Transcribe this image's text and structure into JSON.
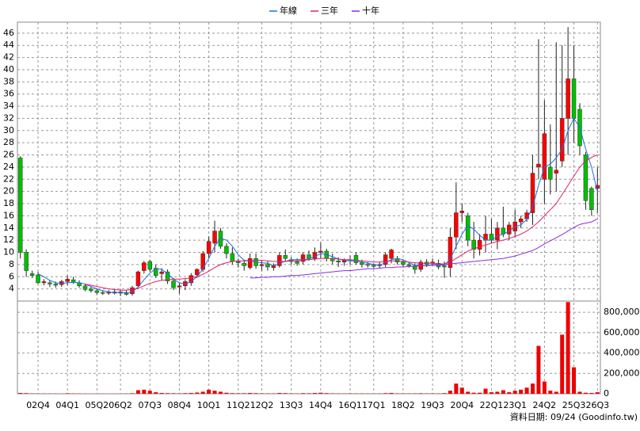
{
  "chart_data": {
    "type": "candlestick",
    "source": "資料日期: 09/24 (Goodinfo.tw)",
    "grid": true,
    "up_color": "#ff0000",
    "down_color": "#00c000",
    "categories": [
      null,
      null,
      null,
      "02Q4",
      null,
      null,
      null,
      null,
      "04Q1",
      null,
      null,
      null,
      null,
      "05Q2",
      null,
      null,
      null,
      "06Q2",
      null,
      null,
      null,
      null,
      "07Q3",
      null,
      null,
      null,
      null,
      "08Q4",
      null,
      null,
      null,
      null,
      "10Q1",
      null,
      null,
      null,
      null,
      "11Q2",
      null,
      null,
      null,
      "12Q2",
      null,
      null,
      null,
      null,
      "13Q3",
      null,
      null,
      null,
      null,
      "14Q4",
      null,
      null,
      null,
      null,
      "16Q1",
      null,
      null,
      null,
      "17Q1",
      null,
      null,
      null,
      null,
      "18Q2",
      null,
      null,
      null,
      null,
      "19Q3",
      null,
      null,
      null,
      null,
      "20Q4",
      null,
      null,
      null,
      null,
      "22Q1",
      null,
      null,
      null,
      "23Q1",
      null,
      null,
      null,
      null,
      "24Q2",
      null,
      null,
      null,
      null,
      "25Q3",
      null,
      null,
      null,
      "26Q3"
    ],
    "open": [
      25.5,
      10,
      6.5,
      6.3,
      5,
      5,
      4.8,
      4.7,
      5.2,
      5.5,
      5,
      4.5,
      4,
      3.7,
      3.4,
      3.3,
      3.5,
      3.3,
      3.4,
      3.2,
      4.5,
      7,
      8.5,
      7.4,
      6.5,
      6.8,
      5.3,
      4.3,
      4.5,
      5,
      6.3,
      7.2,
      9.8,
      11.5,
      13.5,
      11,
      9.8,
      8.5,
      8.2,
      7.5,
      9,
      7.8,
      8,
      7.5,
      7.8,
      9.5,
      8.8,
      8.5,
      8.5,
      9.6,
      9,
      10,
      10.2,
      9,
      8.6,
      8.4,
      8.8,
      9.5,
      8.3,
      8,
      7.9,
      7.8,
      8,
      9,
      9,
      8.4,
      8,
      7.8,
      7.2,
      8.4,
      8.2,
      8.2,
      7.8,
      7.5,
      12.5,
      16.5,
      16,
      12,
      10.5,
      12,
      13,
      12,
      14,
      13,
      13.5,
      15,
      15.5,
      16.5,
      24,
      22,
      24,
      23,
      25,
      32,
      38.5,
      33.5,
      26,
      20.5,
      20.5
    ],
    "high": [
      25.8,
      10.5,
      7,
      6.8,
      5.6,
      5.4,
      5.2,
      5.5,
      6.2,
      6,
      5.4,
      4.8,
      4.4,
      4.1,
      3.8,
      3.8,
      4,
      3.9,
      3.8,
      4.5,
      7,
      8.6,
      8.8,
      8,
      7.4,
      7.2,
      5.8,
      5,
      5.6,
      6.6,
      7.4,
      10.2,
      12.6,
      15.2,
      14,
      11.5,
      10.8,
      9,
      8.8,
      9.8,
      9.8,
      8.6,
      8.5,
      8.2,
      10,
      10.5,
      9.2,
      9,
      10,
      10.3,
      10.8,
      11.6,
      10.6,
      9.8,
      9.2,
      9,
      9.5,
      10,
      8.8,
      8.4,
      8.2,
      8.4,
      10,
      10.6,
      9.4,
      8.8,
      8.3,
      8.2,
      8.8,
      8.9,
      9,
      8.8,
      8.5,
      14,
      21.5,
      18,
      16.5,
      15,
      13,
      16,
      15.5,
      15,
      17.5,
      15,
      17,
      16,
      17,
      26,
      45,
      35,
      31,
      44.5,
      44,
      47,
      44,
      34.5,
      26.5,
      20.8,
      24
    ],
    "low": [
      9,
      6,
      5.8,
      4.8,
      4.6,
      4.3,
      4.2,
      4.3,
      4.6,
      4.8,
      4.2,
      3.6,
      3.4,
      3.1,
      3,
      3,
      3.1,
      2.8,
      2.9,
      2.9,
      4.3,
      6.5,
      6.8,
      5.8,
      5.4,
      4.8,
      3.8,
      3.2,
      3.8,
      4.5,
      5.8,
      6.8,
      9,
      10,
      10.6,
      9,
      8,
      7.5,
      7,
      7.2,
      7.3,
      7,
      7,
      7,
      7.5,
      8.5,
      8,
      7.8,
      8,
      8.6,
      8.6,
      9,
      8.5,
      8,
      7.6,
      7.8,
      8,
      8,
      7.5,
      7.5,
      7.4,
      7.3,
      7.6,
      8.2,
      8,
      7.6,
      7.5,
      6.5,
      6.8,
      7.6,
      7.8,
      7.2,
      5.8,
      6,
      10.5,
      15,
      11,
      9,
      9.5,
      10,
      11.5,
      10.5,
      12.5,
      12,
      12.5,
      14,
      15,
      14.5,
      22,
      18,
      19.5,
      20,
      24,
      26,
      28,
      26,
      17,
      16,
      16.5
    ],
    "close": [
      10,
      7,
      6.2,
      5,
      5.2,
      4.8,
      4.6,
      5.2,
      5.6,
      5.1,
      4.5,
      3.9,
      3.7,
      3.4,
      3.3,
      3.5,
      3.3,
      3.5,
      3.1,
      4.2,
      6.8,
      8.3,
      7.2,
      6.2,
      6.8,
      5.3,
      4.2,
      4.5,
      5.2,
      6.2,
      7.2,
      9.8,
      11.8,
      13.5,
      11,
      9.8,
      8.5,
      8.3,
      7.8,
      9,
      7.8,
      8,
      7.6,
      7.8,
      9.5,
      9,
      8.5,
      8.2,
      9.6,
      9,
      10,
      10.2,
      9,
      8.6,
      8.4,
      8.8,
      8.6,
      8.3,
      8,
      7.9,
      7.7,
      8,
      9.6,
      10.4,
      8.4,
      8,
      7.8,
      7.2,
      8.4,
      8,
      8.4,
      7.6,
      7.6,
      12.5,
      16.5,
      16.8,
      12,
      10.5,
      12,
      13,
      12,
      14,
      13,
      14.5,
      15,
      15.5,
      16.5,
      23,
      24.5,
      29.5,
      22,
      23.5,
      32,
      38.5,
      32,
      27.5,
      18.5,
      17,
      21
    ],
    "ylim": [
      2,
      47.8
    ],
    "yticks": [
      4,
      6,
      8,
      10,
      12,
      14,
      16,
      18,
      20,
      22,
      24,
      26,
      28,
      30,
      32,
      34,
      36,
      38,
      40,
      42,
      44,
      46
    ],
    "series": [
      {
        "name": "年線",
        "color": "#1f6fe0",
        "values": [
          null,
          null,
          null,
          6.5,
          6,
          5.4,
          5,
          4.9,
          5,
          5.1,
          5,
          4.8,
          4.4,
          4,
          3.7,
          3.5,
          3.4,
          3.4,
          3.3,
          3.5,
          4.3,
          5.5,
          6.6,
          7.3,
          7.2,
          6.5,
          5.6,
          5,
          4.8,
          5.2,
          6,
          7.3,
          9,
          11,
          12.3,
          12,
          11,
          9.6,
          8.7,
          8.6,
          8.4,
          8.3,
          8.2,
          7.8,
          8.2,
          8.5,
          8.8,
          8.8,
          8.8,
          8.9,
          9.3,
          9.8,
          9.6,
          9.3,
          8.9,
          8.7,
          8.6,
          8.6,
          8.4,
          8.2,
          8,
          7.9,
          8.3,
          8.8,
          9,
          8.8,
          8.3,
          7.9,
          7.8,
          7.8,
          8,
          8,
          7.9,
          8.9,
          11,
          13,
          14.4,
          13.8,
          12.8,
          12,
          12,
          12.7,
          13,
          13.5,
          14.2,
          14.5,
          15.4,
          17.5,
          21,
          24,
          24.5,
          25.5,
          27,
          30,
          32,
          30.5,
          27,
          24,
          20
        ]
      },
      {
        "name": "三年",
        "color": "#e0206a",
        "values": [
          null,
          null,
          null,
          null,
          null,
          null,
          null,
          null,
          null,
          null,
          null,
          4.8,
          4.6,
          4.4,
          4.2,
          4,
          3.9,
          3.8,
          3.8,
          3.9,
          4.1,
          4.5,
          4.9,
          5.2,
          5.4,
          5.5,
          5.6,
          5.6,
          5.7,
          5.8,
          6,
          6.4,
          6.9,
          7.5,
          8,
          8.3,
          8.5,
          8.6,
          8.6,
          8.6,
          8.7,
          8.7,
          8.6,
          8.5,
          8.5,
          8.5,
          8.6,
          8.6,
          8.7,
          8.8,
          8.9,
          9,
          9,
          9,
          8.9,
          8.8,
          8.8,
          8.7,
          8.6,
          8.5,
          8.4,
          8.4,
          8.5,
          8.6,
          8.6,
          8.5,
          8.4,
          8.3,
          8.2,
          8.2,
          8.2,
          8.1,
          8.1,
          8.4,
          9,
          9.6,
          10.2,
          10.6,
          10.9,
          11.2,
          11.5,
          11.8,
          12,
          12.3,
          12.6,
          13,
          13.5,
          14.2,
          15,
          16,
          17,
          18,
          19.5,
          21,
          22.5,
          24,
          25,
          25.6,
          26
        ]
      },
      {
        "name": "十年",
        "color": "#8a2be2",
        "values": [
          null,
          null,
          null,
          null,
          null,
          null,
          null,
          null,
          null,
          null,
          null,
          null,
          null,
          null,
          null,
          null,
          null,
          null,
          null,
          null,
          null,
          null,
          null,
          null,
          null,
          null,
          null,
          null,
          null,
          null,
          null,
          null,
          null,
          null,
          null,
          null,
          null,
          null,
          null,
          5.8,
          5.8,
          5.9,
          5.9,
          6,
          6,
          6.1,
          6.2,
          6.2,
          6.3,
          6.4,
          6.5,
          6.6,
          6.7,
          6.8,
          6.9,
          7,
          7,
          7.1,
          7.2,
          7.3,
          7.3,
          7.4,
          7.5,
          7.5,
          7.6,
          7.6,
          7.7,
          7.7,
          7.8,
          7.8,
          7.9,
          7.9,
          8,
          8.1,
          8.2,
          8.3,
          8.4,
          8.5,
          8.6,
          8.7,
          8.8,
          8.9,
          9,
          9.2,
          9.4,
          9.7,
          10,
          10.3,
          10.8,
          11.4,
          11.9,
          12.4,
          12.9,
          13.5,
          14.1,
          14.6,
          14.8,
          15,
          15.5
        ]
      }
    ],
    "volume": {
      "color": "#ee0000",
      "ylim": [
        0,
        910000
      ],
      "yticks": [
        0,
        {
          "value": 200000,
          "label": "200,000"
        },
        {
          "value": 400000,
          "label": "400,000"
        },
        {
          "value": 600000,
          "label": "600,000"
        },
        {
          "value": 800000,
          "label": "800,000"
        }
      ],
      "values": [
        8000,
        6000,
        3000,
        2000,
        2000,
        2000,
        2000,
        1000,
        5000,
        3000,
        2000,
        1000,
        1000,
        1000,
        1000,
        1000,
        1000,
        1000,
        2000,
        5000,
        35000,
        40000,
        30000,
        15000,
        8000,
        6000,
        5000,
        4000,
        6000,
        8000,
        12000,
        20000,
        40000,
        30000,
        20000,
        10000,
        6000,
        5000,
        5000,
        8000,
        6000,
        4000,
        4000,
        3000,
        8000,
        6000,
        4000,
        3000,
        6000,
        5000,
        8000,
        10000,
        6000,
        4000,
        3000,
        3000,
        4000,
        3000,
        3000,
        2000,
        2000,
        3000,
        6000,
        8000,
        4000,
        3000,
        3000,
        4000,
        5000,
        3000,
        4000,
        3000,
        6000,
        30000,
        100000,
        60000,
        20000,
        10000,
        10000,
        50000,
        15000,
        20000,
        35000,
        15000,
        30000,
        40000,
        60000,
        100000,
        470000,
        120000,
        30000,
        20000,
        580000,
        900000,
        260000,
        20000,
        10000,
        8000,
        15000
      ]
    }
  }
}
